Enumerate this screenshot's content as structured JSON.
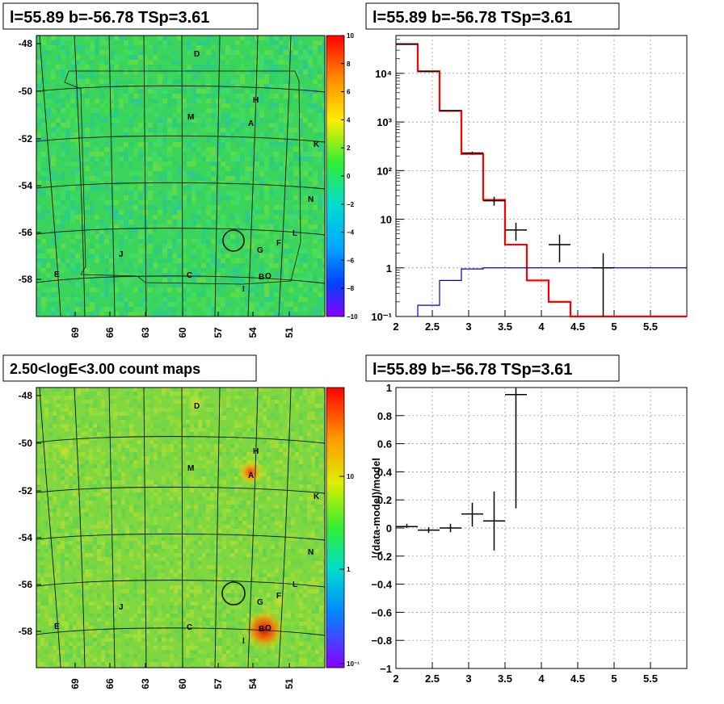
{
  "colors": {
    "hist_red": "#ff0000",
    "hist_blue": "#0000cc",
    "grid": "#999999",
    "map_bg": "#33dd55"
  },
  "panels": {
    "top_left": {
      "title": "l=55.89 b=-56.78 TSp=3.61"
    },
    "top_right": {
      "title": "l=55.89 b=-56.78 TSp=3.61"
    },
    "bottom_left": {
      "title": "2.50<logE<3.00 count maps"
    },
    "bottom_right": {
      "title": "l=55.89 b=-56.78 TSp=3.61"
    }
  },
  "maps": {
    "x_ticks": [
      "69",
      "66",
      "63",
      "60",
      "57",
      "54",
      "51"
    ],
    "y_ticks": [
      "-48",
      "-50",
      "-52",
      "-54",
      "-56",
      "-58"
    ],
    "sources": [
      {
        "label": "D"
      },
      {
        "label": "H"
      },
      {
        "label": "M"
      },
      {
        "label": "A"
      },
      {
        "label": "K"
      },
      {
        "label": "N"
      },
      {
        "label": "L"
      },
      {
        "label": "F"
      },
      {
        "label": "G"
      },
      {
        "label": "J"
      },
      {
        "label": "E"
      },
      {
        "label": "C"
      },
      {
        "label": "B"
      },
      {
        "label": "O"
      },
      {
        "label": "I"
      }
    ],
    "residual_colorbar": {
      "ticks": [
        "10",
        "8",
        "6",
        "4",
        "2",
        "0",
        "−2",
        "−4",
        "−6",
        "−8",
        "−10"
      ]
    },
    "count_colorbar": {
      "ticks": [
        "10",
        "1",
        "10⁻¹"
      ]
    }
  },
  "chart_data": [
    {
      "type": "line",
      "y_scale": "log",
      "xlim": [
        2,
        6
      ],
      "ylim": [
        0.1,
        60000
      ],
      "x_ticks": [
        "2",
        "2.5",
        "3",
        "3.5",
        "4",
        "4.5",
        "5",
        "5.5"
      ],
      "y_ticks": [
        "10⁴",
        "10³",
        "10²",
        "10",
        "1",
        "10⁻¹"
      ],
      "grid": true,
      "series": [
        {
          "style": "step",
          "color": "red",
          "edges": [
            2,
            2.3,
            2.6,
            2.9,
            3.2,
            3.5,
            3.8,
            4.1,
            4.4,
            6
          ],
          "values": [
            40000,
            11000,
            1700,
            220,
            25,
            3,
            0.55,
            0.2,
            0.1
          ]
        },
        {
          "style": "step",
          "color": "blue",
          "edges": [
            2.3,
            2.6,
            2.9,
            3.2,
            6
          ],
          "values": [
            0.17,
            0.55,
            0.95,
            1.0
          ]
        },
        {
          "style": "errorbar",
          "color": "black",
          "points": [
            {
              "x": 2.15,
              "y": 40000,
              "xerr": 0.15,
              "ylo": 39000,
              "yhi": 41000
            },
            {
              "x": 2.45,
              "y": 11000,
              "xerr": 0.15,
              "ylo": 10800,
              "yhi": 11200
            },
            {
              "x": 2.75,
              "y": 1700,
              "xerr": 0.15,
              "ylo": 1650,
              "yhi": 1750
            },
            {
              "x": 3.05,
              "y": 230,
              "xerr": 0.15,
              "ylo": 215,
              "yhi": 245
            },
            {
              "x": 3.35,
              "y": 24,
              "xerr": 0.15,
              "ylo": 19,
              "yhi": 29
            },
            {
              "x": 3.65,
              "y": 6,
              "xerr": 0.15,
              "ylo": 3.6,
              "yhi": 8.5
            },
            {
              "x": 4.25,
              "y": 3,
              "xerr": 0.15,
              "ylo": 1.3,
              "yhi": 4.8
            },
            {
              "x": 4.85,
              "y": 1,
              "xerr": 0.15,
              "ylo": 0.1,
              "yhi": 2
            }
          ]
        }
      ]
    },
    {
      "type": "scatter",
      "ylabel": "(data-model)/model",
      "xlim": [
        2,
        6
      ],
      "ylim": [
        -1,
        1
      ],
      "x_ticks": [
        "2",
        "2.5",
        "3",
        "3.5",
        "4",
        "4.5",
        "5",
        "5.5"
      ],
      "y_ticks": [
        "1",
        "0.8",
        "0.6",
        "0.4",
        "0.2",
        "0",
        "−0.2",
        "−0.4",
        "−0.6",
        "−0.8",
        "−1"
      ],
      "grid": true,
      "points": [
        {
          "x": 2.15,
          "y": 0.01,
          "xerr": 0.15,
          "ylo": 0.0,
          "yhi": 0.03
        },
        {
          "x": 2.45,
          "y": -0.015,
          "xerr": 0.15,
          "ylo": -0.035,
          "yhi": 0.005
        },
        {
          "x": 2.75,
          "y": 0.0,
          "xerr": 0.15,
          "ylo": -0.03,
          "yhi": 0.03
        },
        {
          "x": 3.05,
          "y": 0.1,
          "xerr": 0.15,
          "ylo": 0.01,
          "yhi": 0.18
        },
        {
          "x": 3.35,
          "y": 0.05,
          "xerr": 0.15,
          "ylo": -0.16,
          "yhi": 0.26
        },
        {
          "x": 3.65,
          "y": 0.95,
          "xerr": 0.15,
          "ylo": 0.14,
          "yhi": 1.0
        }
      ]
    }
  ]
}
